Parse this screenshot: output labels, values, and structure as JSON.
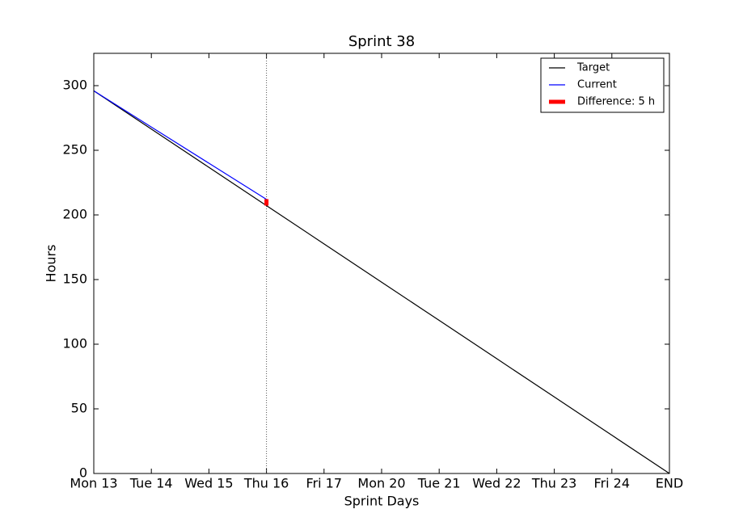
{
  "chart_data": {
    "type": "line",
    "title": "Sprint 38",
    "x_label": "Sprint Days",
    "y_label": "Hours",
    "categories": [
      "Mon 13",
      "Tue 14",
      "Wed 15",
      "Thu 16",
      "Fri 17",
      "Mon 20",
      "Tue 21",
      "Wed 22",
      "Thu 23",
      "Fri 24",
      "END"
    ],
    "series": [
      {
        "name": "Target",
        "color": "#000000",
        "values": [
          296,
          266.4,
          236.8,
          207.2,
          177.6,
          148,
          118.4,
          88.8,
          59.2,
          29.6,
          0
        ]
      },
      {
        "name": "Current",
        "color": "#0000ff",
        "values": [
          296,
          268,
          240,
          212,
          null,
          null,
          null,
          null,
          null,
          null,
          null
        ]
      },
      {
        "name": "Difference: 5 h",
        "color": "#ff0000",
        "values": [
          null,
          null,
          null,
          5,
          null,
          null,
          null,
          null,
          null,
          null,
          null
        ]
      }
    ],
    "ylim": [
      0,
      325
    ],
    "yticks": [
      0,
      50,
      100,
      150,
      200,
      250,
      300
    ],
    "legend": "upper right"
  }
}
